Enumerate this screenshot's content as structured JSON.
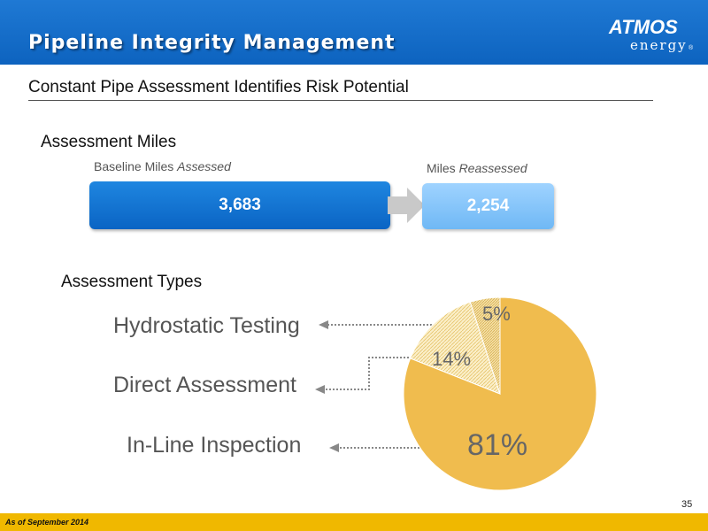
{
  "header": {
    "title": "Pipeline Integrity Management",
    "logo_text": "ATMOS",
    "logo_subtext": "energy",
    "logo_mark": "®",
    "bg_color": "#0d63bf"
  },
  "subtitle": "Constant Pipe Assessment Identifies Risk Potential",
  "assessment_miles": {
    "title": "Assessment Miles",
    "baseline": {
      "label_prefix": "Baseline Miles ",
      "label_em": "Assessed",
      "value": "3,683",
      "color": "#0a64c4"
    },
    "reassessed": {
      "label_prefix": "Miles ",
      "label_em": "Reassessed",
      "value": "2,254",
      "color": "#6fb8f5"
    },
    "arrow_icon": "right-arrow-icon"
  },
  "assessment_types": {
    "title": "Assessment Types"
  },
  "chart_data": {
    "type": "pie",
    "title": "Assessment Types",
    "slices": [
      {
        "label": "In-Line Inspection",
        "value": 81,
        "display": "81%",
        "color": "#f0bc4e"
      },
      {
        "label": "Direct Assessment",
        "value": 14,
        "display": "14%",
        "color": "#f9e6ad"
      },
      {
        "label": "Hydrostatic Testing",
        "value": 5,
        "display": "5%",
        "color": "#f3d690"
      }
    ]
  },
  "page_number": "35",
  "footer": {
    "note": "As of September 2014",
    "color": "#f0b800"
  }
}
